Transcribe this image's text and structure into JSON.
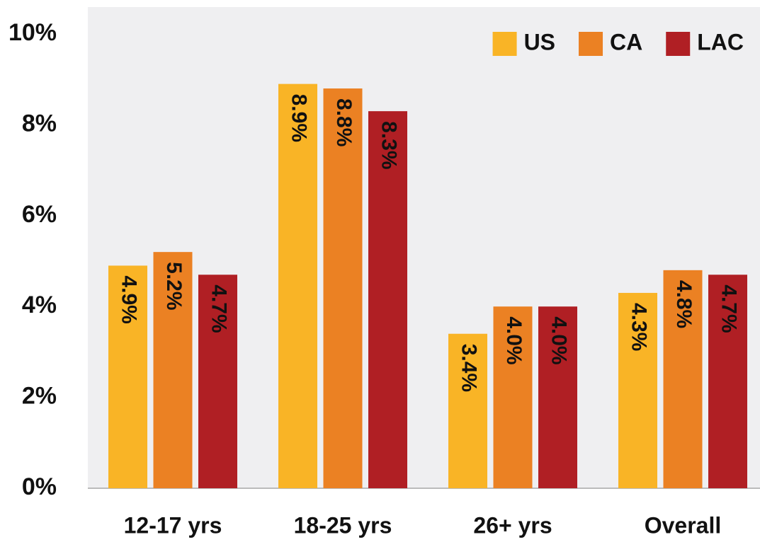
{
  "chart_data": {
    "type": "bar",
    "categories": [
      "12-17 yrs",
      "18-25 yrs",
      "26+ yrs",
      "Overall"
    ],
    "series": [
      {
        "name": "US",
        "color": "#f9b426",
        "values": [
          4.9,
          8.9,
          3.4,
          4.3
        ],
        "value_labels": [
          "4.9%",
          "8.9%",
          "3.4%",
          "4.3%"
        ]
      },
      {
        "name": "CA",
        "color": "#eb8123",
        "values": [
          5.2,
          8.8,
          4.0,
          4.8
        ],
        "value_labels": [
          "5.2%",
          "8.8%",
          "4.0%",
          "4.8%"
        ]
      },
      {
        "name": "LAC",
        "color": "#b01f24",
        "values": [
          4.7,
          8.3,
          4.0,
          4.7
        ],
        "value_labels": [
          "4.7%",
          "8.3%",
          "4.0%",
          "4.7%"
        ]
      }
    ],
    "ylim": [
      0,
      10
    ],
    "yticks": [
      {
        "value": 0,
        "label": "0%"
      },
      {
        "value": 2,
        "label": "2%"
      },
      {
        "value": 4,
        "label": "4%"
      },
      {
        "value": 6,
        "label": "6%"
      },
      {
        "value": 8,
        "label": "8%"
      },
      {
        "value": 10,
        "label": "10%"
      }
    ],
    "legend": "upper right"
  }
}
